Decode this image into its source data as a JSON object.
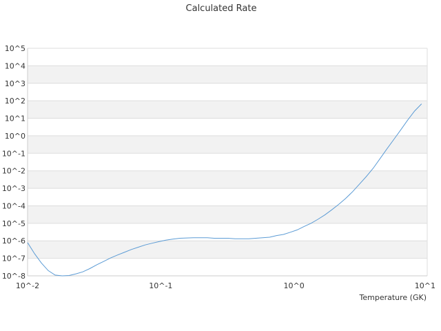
{
  "chart_data": {
    "type": "line",
    "title": "Calculated Rate",
    "xlabel": "Temperature (GK)",
    "ylabel": "",
    "x_scale": "log",
    "y_scale": "log",
    "xlim": [
      0.01,
      10
    ],
    "ylim": [
      1e-08,
      100000
    ],
    "x_ticks": [
      "10^-2",
      "10^-1",
      "10^0",
      "10^1"
    ],
    "y_ticks": [
      "10^-8",
      "10^-7",
      "10^-6",
      "10^-5",
      "10^-4",
      "10^-3",
      "10^-2",
      "10^-1",
      "10^0",
      "10^1",
      "10^2",
      "10^3",
      "10^4",
      "10^5"
    ],
    "grid": "horizontal alternating bands",
    "legend": "none",
    "colors": {
      "line": "#5b9bd5",
      "band": "#f2f2f2",
      "gridline": "#dddddd",
      "axis": "#cccccc"
    },
    "series": [
      {
        "x": [
          0.01,
          0.0113,
          0.0127,
          0.0143,
          0.0161,
          0.0182,
          0.0205,
          0.0231,
          0.026,
          0.0293,
          0.0331,
          0.0372,
          0.042,
          0.0473,
          0.0533,
          0.0601,
          0.0677,
          0.0763,
          0.086,
          0.0969,
          0.109,
          0.123,
          0.139,
          0.156,
          0.176,
          0.199,
          0.224,
          0.252,
          0.284,
          0.32,
          0.361,
          0.407,
          0.458,
          0.516,
          0.582,
          0.656,
          0.739,
          0.833,
          0.938,
          1.057,
          1.191,
          1.342,
          1.512,
          1.704,
          1.92,
          2.163,
          2.438,
          2.747,
          3.095,
          3.488,
          3.93,
          4.428,
          4.99,
          5.623,
          6.336,
          7.139,
          8.045,
          9.065
        ],
        "y": [
          7.9e-07,
          1.8e-07,
          5.4e-08,
          2e-08,
          1.1e-08,
          1e-08,
          1.05e-08,
          1.3e-08,
          1.7e-08,
          2.6e-08,
          4.3e-08,
          6.6e-08,
          1.05e-07,
          1.55e-07,
          2.2e-07,
          3.2e-07,
          4.3e-07,
          5.8e-07,
          7.3e-07,
          9e-07,
          1.1e-06,
          1.25e-06,
          1.4e-06,
          1.45e-06,
          1.5e-06,
          1.5e-06,
          1.5e-06,
          1.4e-06,
          1.4e-06,
          1.4e-06,
          1.3e-06,
          1.3e-06,
          1.3e-06,
          1.4e-06,
          1.5e-06,
          1.6e-06,
          2e-06,
          2.3e-06,
          3.1e-06,
          4.2e-06,
          6.6e-06,
          1e-05,
          1.7e-05,
          3e-05,
          5.9e-05,
          0.00012,
          0.00026,
          0.00063,
          0.0017,
          0.0047,
          0.014,
          0.05,
          0.18,
          0.63,
          2.2,
          7.9,
          26,
          67
        ]
      }
    ]
  }
}
